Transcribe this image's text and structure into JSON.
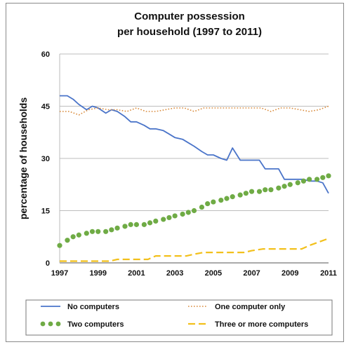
{
  "chart_data": {
    "type": "line",
    "title_line1": "Computer possession",
    "title_line2": "per household (1997 to 2011)",
    "xlabel": "",
    "ylabel": "percentage of households",
    "xlim": [
      1997,
      2011
    ],
    "ylim": [
      0,
      60
    ],
    "x_ticks": [
      "1997",
      "1999",
      "2001",
      "2003",
      "2005",
      "2007",
      "2009",
      "2011"
    ],
    "y_ticks": [
      "0",
      "15",
      "30",
      "45",
      "60"
    ],
    "grid": "horizontal",
    "legend": "bottom",
    "series": [
      {
        "name": "No computers",
        "color": "#4a74c9",
        "style": "solid",
        "x": [
          1997,
          1997.4,
          1997.7,
          1998,
          1998.4,
          1998.7,
          1999,
          1999.4,
          1999.7,
          2000,
          2000.4,
          2000.7,
          2001,
          2001.4,
          2001.7,
          2002,
          2002.4,
          2002.7,
          2003,
          2003.4,
          2003.7,
          2004,
          2004.4,
          2004.7,
          2005,
          2005.4,
          2005.7,
          2006,
          2006.4,
          2006.7,
          2007,
          2007.4,
          2007.7,
          2008,
          2008.4,
          2008.7,
          2009,
          2009.4,
          2009.7,
          2010,
          2010.4,
          2010.7,
          2011
        ],
        "values": [
          48,
          48,
          47,
          45.5,
          44,
          45,
          44.5,
          43,
          44,
          43.5,
          42,
          40.5,
          40.5,
          39.5,
          38.5,
          38.5,
          38,
          37,
          36,
          35.5,
          34.5,
          33.5,
          32,
          31,
          31,
          30,
          29.5,
          33,
          29.5,
          29.5,
          29.5,
          29.5,
          27,
          27,
          27,
          24,
          24,
          24,
          24,
          23.5,
          23.5,
          23,
          20
        ]
      },
      {
        "name": "One computer only",
        "color": "#d98a3a",
        "style": "dotted",
        "x": [
          1997,
          1997.5,
          1998,
          1998.5,
          1999,
          1999.5,
          2000,
          2000.5,
          2001,
          2001.5,
          2002,
          2002.5,
          2003,
          2003.5,
          2004,
          2004.5,
          2005,
          2005.5,
          2006,
          2006.5,
          2007,
          2007.5,
          2008,
          2008.5,
          2009,
          2009.5,
          2010,
          2010.5,
          2011
        ],
        "values": [
          43.5,
          43.5,
          42.5,
          44,
          44.5,
          44,
          44,
          43.5,
          44.5,
          43.5,
          43.5,
          44,
          44.5,
          44.5,
          43.5,
          44.5,
          44.5,
          44.5,
          44.5,
          44.5,
          44.5,
          44.5,
          43.5,
          44.5,
          44.5,
          44,
          43.5,
          44,
          45
        ]
      },
      {
        "name": "Two computers",
        "color": "#6fab45",
        "style": "dots",
        "x": [
          1997,
          1997.4,
          1997.7,
          1998,
          1998.4,
          1998.7,
          1999,
          1999.4,
          1999.7,
          2000,
          2000.4,
          2000.7,
          2001,
          2001.4,
          2001.7,
          2002,
          2002.4,
          2002.7,
          2003,
          2003.4,
          2003.7,
          2004,
          2004.4,
          2004.7,
          2005,
          2005.4,
          2005.7,
          2006,
          2006.4,
          2006.7,
          2007,
          2007.4,
          2007.7,
          2008,
          2008.4,
          2008.7,
          2009,
          2009.4,
          2009.7,
          2010,
          2010.4,
          2010.7,
          2011
        ],
        "values": [
          5,
          6.5,
          7.5,
          8,
          8.5,
          9,
          9,
          9,
          9.5,
          10,
          10.5,
          11,
          11,
          11,
          11.5,
          12,
          12.5,
          13,
          13.5,
          14,
          14.5,
          15,
          16,
          17,
          17.5,
          18,
          18.5,
          19,
          19.5,
          20,
          20.5,
          20.5,
          21,
          21,
          21.5,
          22,
          22.5,
          23,
          23.5,
          24,
          24,
          24.5,
          25
        ]
      },
      {
        "name": "Three or more computers",
        "color": "#f2c01b",
        "style": "dashed",
        "x": [
          1997,
          1998,
          1999,
          1999.6,
          2000,
          2001,
          2001.6,
          2002,
          2003,
          2003.6,
          2004,
          2004.5,
          2005,
          2006,
          2006.6,
          2007,
          2007.6,
          2008,
          2009,
          2009.6,
          2010,
          2010.5,
          2011
        ],
        "values": [
          0.5,
          0.5,
          0.5,
          0.5,
          1,
          1,
          1,
          2,
          2,
          2,
          2.5,
          3,
          3,
          3,
          3,
          3.5,
          4,
          4,
          4,
          4,
          5,
          6,
          7
        ]
      }
    ]
  }
}
